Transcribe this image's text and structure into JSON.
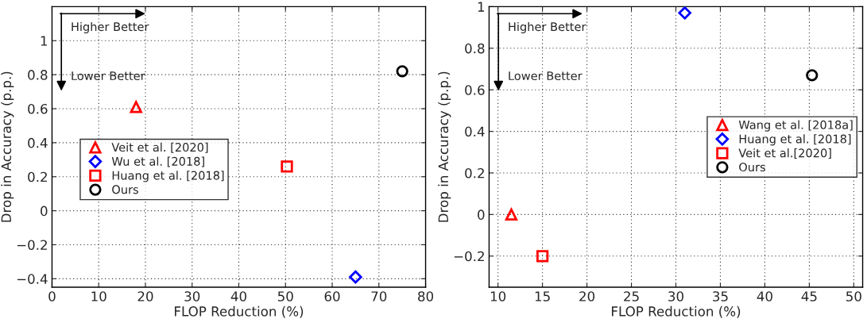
{
  "chart_data": [
    {
      "type": "scatter",
      "xlabel": "FLOP Reduction (%)",
      "ylabel": "Drop in Accuracy (p.p.)",
      "xlim": [
        0,
        80
      ],
      "ylim": [
        -0.45,
        1.2
      ],
      "xticks": [
        0,
        10,
        20,
        30,
        40,
        50,
        60,
        70,
        80
      ],
      "yticks": [
        -0.4,
        -0.2,
        0,
        0.2,
        0.4,
        0.6,
        0.8,
        1
      ],
      "grid": true,
      "legend": "left",
      "annotations": [
        "Higher Better",
        "Lower Better"
      ],
      "series": [
        {
          "name": "Veit et al. [2020]",
          "color": "#ff0000",
          "marker": "triangle",
          "x": [
            18
          ],
          "values": [
            0.61
          ]
        },
        {
          "name": "Wu et al. [2018]",
          "color": "#0000ff",
          "marker": "diamond",
          "x": [
            65
          ],
          "values": [
            -0.39
          ]
        },
        {
          "name": "Huang et al. [2018]",
          "color": "#ff0000",
          "marker": "square",
          "x": [
            50.3
          ],
          "values": [
            0.26
          ]
        },
        {
          "name": "Ours",
          "color": "#000000",
          "marker": "circle",
          "x": [
            75
          ],
          "values": [
            0.82
          ]
        }
      ]
    },
    {
      "type": "scatter",
      "xlabel": "FLOP Reduction (%)",
      "ylabel": "Drop in Accuracy (p.p.)",
      "xlim": [
        9,
        51
      ],
      "ylim": [
        -0.35,
        1.0
      ],
      "xticks": [
        10,
        15,
        20,
        25,
        30,
        35,
        40,
        45,
        50
      ],
      "yticks": [
        -0.2,
        0,
        0.2,
        0.4,
        0.6,
        0.8,
        1
      ],
      "grid": true,
      "legend": "right",
      "annotations": [
        "Higher Better",
        "Lower Better"
      ],
      "series": [
        {
          "name": "Wang et al. [2018a]",
          "color": "#ff0000",
          "marker": "triangle",
          "x": [
            11.5
          ],
          "values": [
            0
          ]
        },
        {
          "name": "Huang et al. [2018]",
          "color": "#0000ff",
          "marker": "diamond",
          "x": [
            31
          ],
          "values": [
            0.97
          ]
        },
        {
          "name": "Veit et al.[2020]",
          "color": "#ff0000",
          "marker": "square",
          "x": [
            15
          ],
          "values": [
            -0.2
          ]
        },
        {
          "name": "Ours",
          "color": "#000000",
          "marker": "circle",
          "x": [
            45.3
          ],
          "values": [
            0.67
          ]
        }
      ]
    }
  ]
}
